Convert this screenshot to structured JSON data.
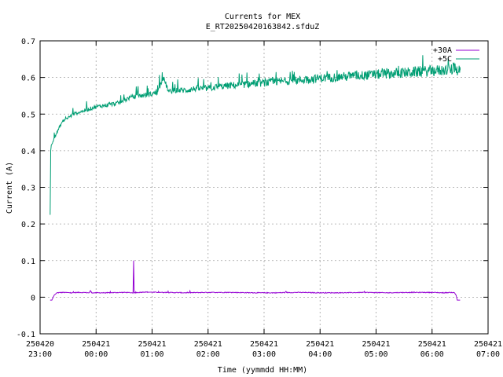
{
  "chart_data": {
    "type": "line",
    "title": "Currents for MEX",
    "subtitle": "E_RT20250420163842.sfduZ",
    "xlabel": "Time (yymmdd HH:MM)",
    "ylabel": "Current (A)",
    "ylim": [
      -0.1,
      0.7
    ],
    "yticks": [
      "-0.1",
      "0",
      "0.1",
      "0.2",
      "0.3",
      "0.4",
      "0.5",
      "0.6",
      "0.7"
    ],
    "xlim_hours": [
      23,
      31
    ],
    "xticks": [
      {
        "date": "250420",
        "time": "23:00"
      },
      {
        "date": "250421",
        "time": "00:00"
      },
      {
        "date": "250421",
        "time": "01:00"
      },
      {
        "date": "250421",
        "time": "02:00"
      },
      {
        "date": "250421",
        "time": "03:00"
      },
      {
        "date": "250421",
        "time": "04:00"
      },
      {
        "date": "250421",
        "time": "05:00"
      },
      {
        "date": "250421",
        "time": "06:00"
      },
      {
        "date": "250421",
        "time": "07:00"
      }
    ],
    "grid": true,
    "legend_position": "top-right",
    "series": [
      {
        "name": "+30A",
        "color": "#9400d3",
        "x": [
          23.18,
          23.21,
          23.25,
          23.3,
          23.4,
          23.55,
          23.7,
          23.88,
          23.9,
          23.92,
          24.2,
          24.5,
          24.66,
          24.67,
          24.68,
          24.7,
          24.85,
          25.2,
          25.6,
          26.0,
          26.4,
          26.8,
          27.2,
          27.6,
          28.0,
          28.4,
          28.8,
          29.2,
          29.6,
          30.0,
          30.2,
          30.35,
          30.4,
          30.43,
          30.45,
          30.5
        ],
        "values": [
          -0.008,
          -0.008,
          0.005,
          0.012,
          0.013,
          0.012,
          0.013,
          0.012,
          0.018,
          0.012,
          0.012,
          0.013,
          0.012,
          0.1,
          0.012,
          0.012,
          0.014,
          0.013,
          0.012,
          0.013,
          0.013,
          0.012,
          0.012,
          0.013,
          0.012,
          0.012,
          0.013,
          0.012,
          0.013,
          0.013,
          0.012,
          0.013,
          0.012,
          0.005,
          -0.008,
          -0.008
        ]
      },
      {
        "name": "+5C",
        "color": "#009e73",
        "x": [
          23.18,
          23.19,
          23.2,
          23.22,
          23.25,
          23.3,
          23.35,
          23.4,
          23.5,
          23.6,
          23.7,
          23.8,
          23.9,
          24.0,
          24.2,
          24.4,
          24.6,
          24.8,
          25.0,
          25.1,
          25.2,
          25.3,
          25.4,
          25.6,
          25.8,
          26.0,
          26.2,
          26.4,
          26.6,
          26.8,
          27.0,
          27.2,
          27.4,
          27.6,
          27.8,
          28.0,
          28.2,
          28.4,
          28.6,
          28.8,
          29.0,
          29.2,
          29.4,
          29.6,
          29.8,
          30.0,
          30.2,
          30.4,
          30.5
        ],
        "values": [
          0.225,
          0.4,
          0.415,
          0.42,
          0.435,
          0.45,
          0.465,
          0.48,
          0.49,
          0.5,
          0.505,
          0.51,
          0.515,
          0.52,
          0.525,
          0.53,
          0.545,
          0.55,
          0.555,
          0.56,
          0.6,
          0.56,
          0.565,
          0.565,
          0.57,
          0.57,
          0.575,
          0.578,
          0.58,
          0.583,
          0.585,
          0.588,
          0.59,
          0.592,
          0.595,
          0.598,
          0.6,
          0.602,
          0.604,
          0.606,
          0.608,
          0.61,
          0.612,
          0.614,
          0.616,
          0.618,
          0.62,
          0.622,
          0.62
        ]
      }
    ]
  }
}
